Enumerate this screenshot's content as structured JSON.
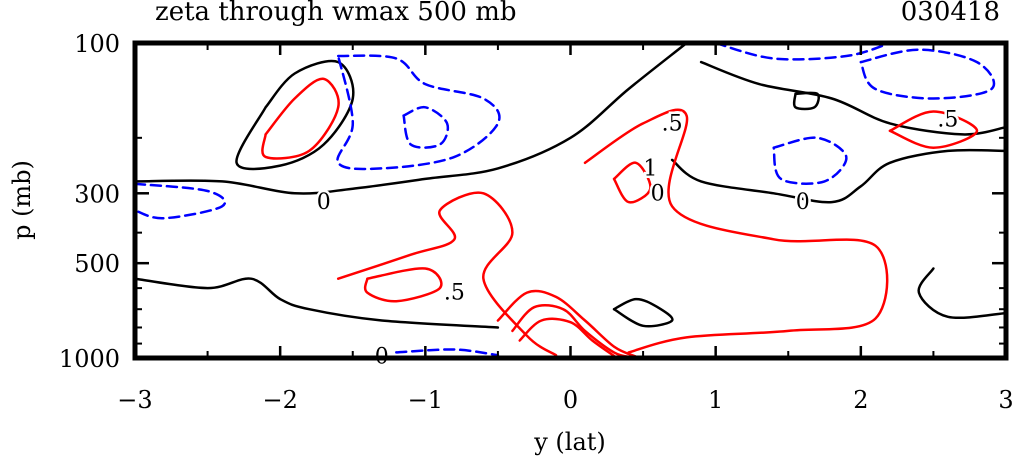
{
  "header": {
    "title": "zeta through wmax 500 mb",
    "date": "030418"
  },
  "colors": {
    "frame": "#000000",
    "zero_contour": "#000000",
    "positive_contour": "#ff0000",
    "negative_contour": "#0000ff",
    "background": "#ffffff"
  },
  "chart_data": {
    "type": "contour",
    "title": "zeta through wmax 500 mb",
    "xlabel": "y (lat)",
    "ylabel": "p (mb)",
    "xlim": [
      -3,
      3
    ],
    "ylim": [
      1000,
      100
    ],
    "x_ticks": [
      -3,
      -2,
      -1,
      0,
      1,
      2,
      3
    ],
    "x_tick_labels": [
      "−3",
      "−2",
      "−1",
      "0",
      "1",
      "2",
      "3"
    ],
    "y_ticks": [
      100,
      300,
      500,
      1000
    ],
    "y_tick_labels": [
      "100",
      "300",
      "500",
      "1000"
    ],
    "contour_labels": [
      {
        "text": "0",
        "y": -1.7,
        "p": 320
      },
      {
        "text": "0",
        "y": 1.6,
        "p": 320
      },
      {
        "text": "0",
        "y": -1.3,
        "p": 990
      },
      {
        "text": "0",
        "y": 0.6,
        "p": 300
      },
      {
        "text": ".5",
        "y": -0.8,
        "p": 620
      },
      {
        "text": ".5",
        "y": 0.7,
        "p": 180
      },
      {
        "text": ".5",
        "y": 2.6,
        "p": 175
      },
      {
        "text": "1",
        "y": 0.55,
        "p": 250
      }
    ],
    "contours": [
      {
        "level": 0,
        "kind": "zero",
        "points": [
          [
            -3,
            275
          ],
          [
            -2.4,
            275
          ],
          [
            -1.9,
            300
          ],
          [
            -1.5,
            290
          ],
          [
            -1,
            270
          ],
          [
            -0.5,
            250
          ],
          [
            0,
            200
          ],
          [
            0.4,
            140
          ],
          [
            0.8,
            100
          ]
        ]
      },
      {
        "level": 0,
        "kind": "zero",
        "points": [
          [
            -3,
            560
          ],
          [
            -2.5,
            600
          ],
          [
            -2.2,
            560
          ],
          [
            -2,
            650
          ],
          [
            -1.8,
            700
          ],
          [
            -1.3,
            760
          ],
          [
            -0.5,
            800
          ]
        ]
      },
      {
        "level": 0,
        "kind": "zero",
        "points": [
          [
            -2.1,
            160
          ],
          [
            -1.9,
            125
          ],
          [
            -1.6,
            115
          ],
          [
            -1.5,
            150
          ],
          [
            -1.7,
            210
          ],
          [
            -2,
            245
          ],
          [
            -2.3,
            240
          ],
          [
            -2.1,
            160
          ]
        ]
      },
      {
        "level": 0,
        "kind": "zero",
        "points": [
          [
            0.9,
            115
          ],
          [
            1.3,
            135
          ],
          [
            1.8,
            150
          ],
          [
            2.2,
            180
          ],
          [
            2.7,
            195
          ],
          [
            3,
            185
          ]
        ]
      },
      {
        "level": 0,
        "kind": "zero",
        "points": [
          [
            0.7,
            235
          ],
          [
            0.9,
            275
          ],
          [
            1.4,
            300
          ],
          [
            1.8,
            320
          ],
          [
            2,
            285
          ],
          [
            2.2,
            240
          ],
          [
            2.6,
            220
          ],
          [
            3,
            220
          ]
        ]
      },
      {
        "level": 0,
        "kind": "zero",
        "points": [
          [
            0.3,
            700
          ],
          [
            0.5,
            790
          ],
          [
            0.7,
            760
          ],
          [
            0.6,
            690
          ],
          [
            0.45,
            650
          ],
          [
            0.3,
            700
          ]
        ]
      },
      {
        "level": 0,
        "kind": "zero",
        "points": [
          [
            2.5,
            520
          ],
          [
            2.4,
            620
          ],
          [
            2.6,
            740
          ],
          [
            3,
            720
          ]
        ]
      },
      {
        "level": 0,
        "kind": "zero",
        "points": [
          [
            1.55,
            145
          ],
          [
            1.7,
            145
          ],
          [
            1.68,
            160
          ],
          [
            1.55,
            160
          ],
          [
            1.55,
            145
          ]
        ]
      },
      {
        "level": -0.5,
        "kind": "negative",
        "points": [
          [
            -1.6,
            110
          ],
          [
            -1.2,
            112
          ],
          [
            -1,
            135
          ],
          [
            -0.6,
            150
          ],
          [
            -0.5,
            180
          ],
          [
            -0.8,
            230
          ],
          [
            -1.3,
            250
          ],
          [
            -1.6,
            240
          ],
          [
            -1.5,
            180
          ],
          [
            -1.6,
            110
          ]
        ]
      },
      {
        "level": -0.5,
        "kind": "negative",
        "points": [
          [
            -1.15,
            170
          ],
          [
            -1,
            160
          ],
          [
            -0.85,
            180
          ],
          [
            -0.9,
            210
          ],
          [
            -1.1,
            210
          ],
          [
            -1.15,
            170
          ]
        ]
      },
      {
        "level": -0.5,
        "kind": "negative",
        "points": [
          [
            -3,
            280
          ],
          [
            -2.5,
            295
          ],
          [
            -2.4,
            330
          ],
          [
            -2.8,
            360
          ],
          [
            -3,
            340
          ]
        ]
      },
      {
        "level": -0.5,
        "kind": "negative",
        "points": [
          [
            1,
            100
          ],
          [
            1.4,
            112
          ],
          [
            1.9,
            110
          ],
          [
            2.2,
            100
          ]
        ]
      },
      {
        "level": -0.5,
        "kind": "negative",
        "points": [
          [
            2,
            115
          ],
          [
            2.4,
            105
          ],
          [
            2.8,
            115
          ],
          [
            2.9,
            140
          ],
          [
            2.5,
            150
          ],
          [
            2.1,
            140
          ],
          [
            2,
            115
          ]
        ]
      },
      {
        "level": -0.5,
        "kind": "negative",
        "points": [
          [
            1.4,
            215
          ],
          [
            1.7,
            200
          ],
          [
            1.9,
            230
          ],
          [
            1.75,
            275
          ],
          [
            1.45,
            270
          ],
          [
            1.4,
            215
          ]
        ]
      },
      {
        "level": -0.5,
        "kind": "negative",
        "points": [
          [
            -1.2,
            960
          ],
          [
            -0.8,
            940
          ],
          [
            -0.5,
            980
          ]
        ]
      },
      {
        "level": 0.5,
        "kind": "positive",
        "points": [
          [
            -2.1,
            195
          ],
          [
            -1.9,
            150
          ],
          [
            -1.7,
            130
          ],
          [
            -1.6,
            160
          ],
          [
            -1.8,
            220
          ],
          [
            -2.1,
            230
          ],
          [
            -2.1,
            195
          ]
        ]
      },
      {
        "level": 0.5,
        "kind": "positive",
        "points": [
          [
            -1.6,
            560
          ],
          [
            -1.1,
            470
          ],
          [
            -0.8,
            420
          ],
          [
            -0.9,
            340
          ],
          [
            -0.6,
            300
          ],
          [
            -0.4,
            400
          ],
          [
            -0.6,
            560
          ],
          [
            -0.3,
            850
          ],
          [
            -0.1,
            980
          ]
        ]
      },
      {
        "level": 0.5,
        "kind": "positive",
        "points": [
          [
            -1.4,
            560
          ],
          [
            -1,
            520
          ],
          [
            -0.9,
            600
          ],
          [
            -1.2,
            660
          ],
          [
            -1.4,
            620
          ],
          [
            -1.4,
            560
          ]
        ]
      },
      {
        "level": 0.5,
        "kind": "positive",
        "points": [
          [
            0.1,
            240
          ],
          [
            0.5,
            180
          ],
          [
            0.8,
            170
          ],
          [
            0.7,
            330
          ],
          [
            1.4,
            420
          ],
          [
            2.1,
            440
          ],
          [
            2.1,
            750
          ],
          [
            1.5,
            820
          ],
          [
            0.8,
            860
          ],
          [
            0.4,
            960
          ]
        ]
      },
      {
        "level": 1.0,
        "kind": "positive",
        "points": [
          [
            0.3,
            270
          ],
          [
            0.45,
            240
          ],
          [
            0.55,
            290
          ],
          [
            0.4,
            320
          ],
          [
            0.3,
            270
          ]
        ]
      },
      {
        "level": 1.0,
        "kind": "positive",
        "points": [
          [
            2.2,
            190
          ],
          [
            2.5,
            165
          ],
          [
            2.8,
            190
          ],
          [
            2.5,
            215
          ],
          [
            2.2,
            190
          ]
        ]
      },
      {
        "level": 1.5,
        "kind": "positive",
        "points": [
          [
            -0.5,
            760
          ],
          [
            -0.3,
            620
          ],
          [
            -0.1,
            640
          ],
          [
            0.1,
            760
          ],
          [
            0.3,
            920
          ],
          [
            0.45,
            990
          ]
        ]
      },
      {
        "level": 2.0,
        "kind": "positive",
        "points": [
          [
            -0.4,
            820
          ],
          [
            -0.25,
            690
          ],
          [
            -0.05,
            700
          ],
          [
            0.1,
            820
          ],
          [
            0.3,
            960
          ],
          [
            0.42,
            995
          ]
        ]
      },
      {
        "level": 2.5,
        "kind": "positive",
        "points": [
          [
            -0.35,
            880
          ],
          [
            -0.2,
            760
          ],
          [
            0,
            770
          ],
          [
            0.15,
            880
          ],
          [
            0.3,
            985
          ]
        ]
      }
    ]
  }
}
